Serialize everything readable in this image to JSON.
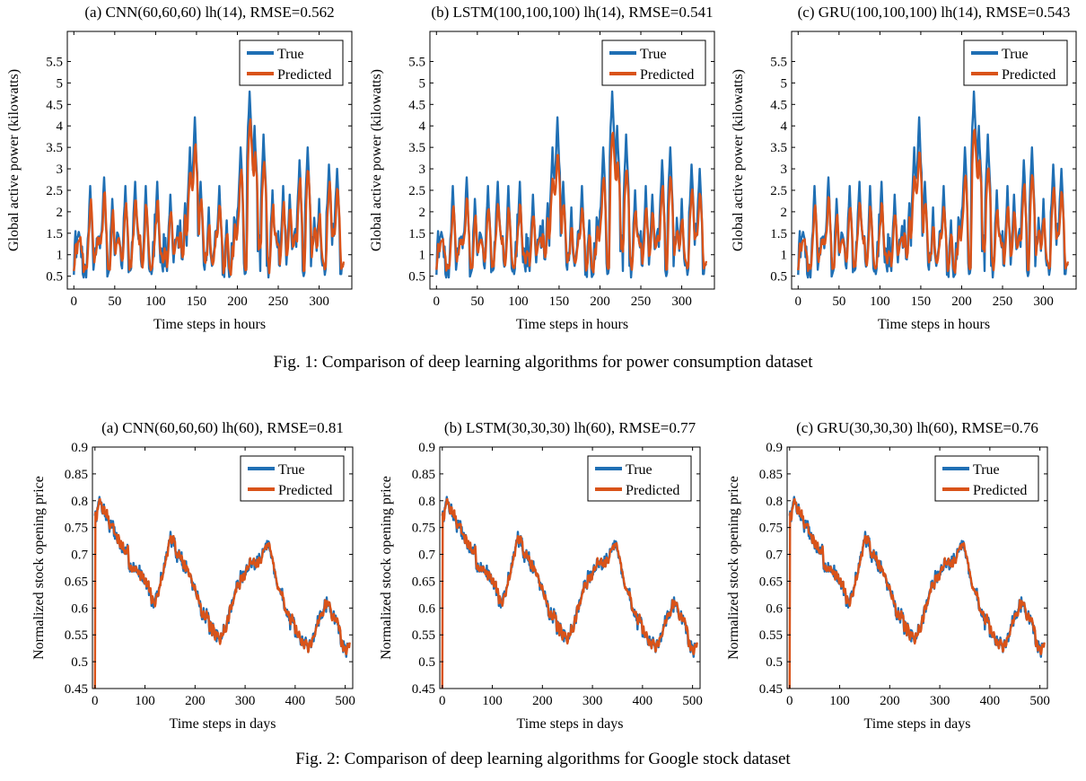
{
  "captions": {
    "fig1": "Fig. 1: Comparison of deep learning algorithms for power consumption dataset",
    "fig2": "Fig. 2: Comparison of deep learning algorithms for Google stock dataset"
  },
  "colors": {
    "true": "#1f6fb4",
    "predicted": "#d95319"
  },
  "chart_data": [
    {
      "type": "line",
      "title": "(a) CNN(60,60,60) lh(14), RMSE=0.562",
      "xlabel": "Time steps in hours",
      "ylabel": "Global active power (kilowatts)",
      "xlim": [
        -8,
        340
      ],
      "ylim": [
        0.2,
        6.2
      ],
      "xticks": [
        0,
        50,
        100,
        150,
        200,
        250,
        300
      ],
      "yticks": [
        0.5,
        1,
        1.5,
        2,
        2.5,
        3,
        3.5,
        4,
        4.5,
        5,
        5.5
      ],
      "legend": "top-right",
      "grid": false,
      "generator": {
        "kind": "power",
        "n": 331,
        "seed": 11,
        "lag": 0.6,
        "damp": 0.85,
        "noise": 0.18
      },
      "series": [
        {
          "name": "True",
          "color": "#1f6fb4",
          "values": []
        },
        {
          "name": "Predicted",
          "color": "#d95319",
          "values": []
        }
      ]
    },
    {
      "type": "line",
      "title": "(b) LSTM(100,100,100) lh(14), RMSE=0.541",
      "xlabel": "Time steps in hours",
      "ylabel": "Global active power (kilowatts)",
      "xlim": [
        -8,
        340
      ],
      "ylim": [
        0.2,
        6.2
      ],
      "xticks": [
        0,
        50,
        100,
        150,
        200,
        250,
        300
      ],
      "yticks": [
        0.5,
        1,
        1.5,
        2,
        2.5,
        3,
        3.5,
        4,
        4.5,
        5,
        5.5
      ],
      "legend": "top-right",
      "grid": false,
      "generator": {
        "kind": "power",
        "n": 331,
        "seed": 11,
        "lag": 0.5,
        "damp": 0.78,
        "noise": 0.12
      },
      "series": [
        {
          "name": "True",
          "color": "#1f6fb4",
          "values": []
        },
        {
          "name": "Predicted",
          "color": "#d95319",
          "values": []
        }
      ]
    },
    {
      "type": "line",
      "title": "(c) GRU(100,100,100) lh(14), RMSE=0.543",
      "xlabel": "Time steps in hours",
      "ylabel": "Global active power (kilowatts)",
      "xlim": [
        -8,
        340
      ],
      "ylim": [
        0.2,
        6.2
      ],
      "xticks": [
        0,
        50,
        100,
        150,
        200,
        250,
        300
      ],
      "yticks": [
        0.5,
        1,
        1.5,
        2,
        2.5,
        3,
        3.5,
        4,
        4.5,
        5,
        5.5
      ],
      "legend": "top-right",
      "grid": false,
      "generator": {
        "kind": "power",
        "n": 331,
        "seed": 11,
        "lag": 0.5,
        "damp": 0.8,
        "noise": 0.12
      },
      "series": [
        {
          "name": "True",
          "color": "#1f6fb4",
          "values": []
        },
        {
          "name": "Predicted",
          "color": "#d95319",
          "values": []
        }
      ]
    },
    {
      "type": "line",
      "title": "(a) CNN(60,60,60) lh(60), RMSE=0.81",
      "xlabel": "Time steps in days",
      "ylabel": "Normalized stock opening price",
      "xlim": [
        -5,
        515
      ],
      "ylim": [
        0.45,
        0.9
      ],
      "xticks": [
        0,
        100,
        200,
        300,
        400,
        500
      ],
      "yticks": [
        0.45,
        0.5,
        0.55,
        0.6,
        0.65,
        0.7,
        0.75,
        0.8,
        0.85,
        0.9
      ],
      "legend": "top-right",
      "grid": false,
      "generator": {
        "kind": "stock",
        "n": 510,
        "seed": 7,
        "noise": 0.008
      },
      "series": [
        {
          "name": "True",
          "color": "#1f6fb4",
          "values": []
        },
        {
          "name": "Predicted",
          "color": "#d95319",
          "values": []
        }
      ]
    },
    {
      "type": "line",
      "title": "(b) LSTM(30,30,30) lh(60), RMSE=0.77",
      "xlabel": "Time steps in days",
      "ylabel": "Normalized stock opening price",
      "xlim": [
        -5,
        515
      ],
      "ylim": [
        0.45,
        0.9
      ],
      "xticks": [
        0,
        100,
        200,
        300,
        400,
        500
      ],
      "yticks": [
        0.45,
        0.5,
        0.55,
        0.6,
        0.65,
        0.7,
        0.75,
        0.8,
        0.85,
        0.9
      ],
      "legend": "top-right",
      "grid": false,
      "generator": {
        "kind": "stock",
        "n": 510,
        "seed": 7,
        "noise": 0.007
      },
      "series": [
        {
          "name": "True",
          "color": "#1f6fb4",
          "values": []
        },
        {
          "name": "Predicted",
          "color": "#d95319",
          "values": []
        }
      ]
    },
    {
      "type": "line",
      "title": "(c) GRU(30,30,30) lh(60), RMSE=0.76",
      "xlabel": "Time steps in days",
      "ylabel": "Normalized stock opening price",
      "xlim": [
        -5,
        515
      ],
      "ylim": [
        0.45,
        0.9
      ],
      "xticks": [
        0,
        100,
        200,
        300,
        400,
        500
      ],
      "yticks": [
        0.45,
        0.5,
        0.55,
        0.6,
        0.65,
        0.7,
        0.75,
        0.8,
        0.85,
        0.9
      ],
      "legend": "top-right",
      "grid": false,
      "generator": {
        "kind": "stock",
        "n": 510,
        "seed": 7,
        "noise": 0.007
      },
      "series": [
        {
          "name": "True",
          "color": "#1f6fb4",
          "values": []
        },
        {
          "name": "Predicted",
          "color": "#d95319",
          "values": []
        }
      ]
    }
  ]
}
